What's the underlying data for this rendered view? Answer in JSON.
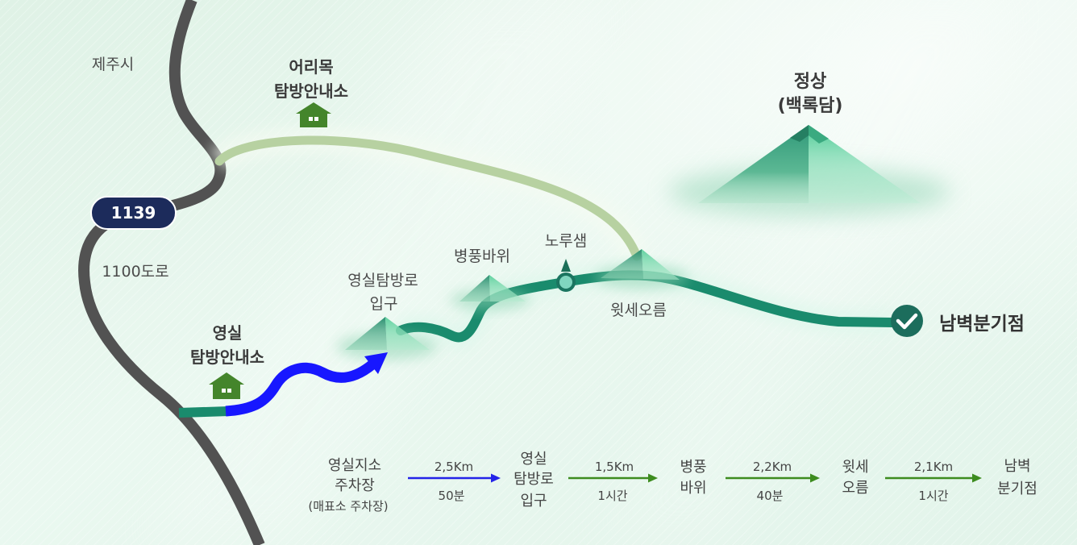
{
  "map": {
    "city_label": "제주시",
    "road_label": "1100도로",
    "road_number": "1139",
    "eorimok_center": {
      "lines": [
        "어리목",
        "탐방안내소"
      ],
      "icon": "house-icon"
    },
    "yeongsil_center": {
      "lines": [
        "영실",
        "탐방안내소"
      ],
      "icon": "house-icon"
    },
    "trail_entrance": {
      "lines": [
        "영실탐방로",
        "입구"
      ]
    },
    "byeongpung_rock": {
      "label": "병풍바위"
    },
    "noru_spring": {
      "label": "노루샘",
      "icon": "pin-icon"
    },
    "witse_oreum": {
      "label": "윗세오름"
    },
    "summit": {
      "lines": [
        "정상",
        "(백록담)"
      ]
    },
    "nambyeok_junction": {
      "label": "남벽분기점",
      "icon": "check-circle-icon"
    }
  },
  "legend": {
    "stops": [
      {
        "lines": [
          "영실지소",
          "주차장",
          "(매표소 주차장)"
        ]
      },
      {
        "lines": [
          "영실",
          "탐방로",
          "입구"
        ]
      },
      {
        "lines": [
          "병풍",
          "바위"
        ]
      },
      {
        "lines": [
          "윗세",
          "오름"
        ]
      },
      {
        "lines": [
          "남벽",
          "분기점"
        ]
      }
    ],
    "segments": [
      {
        "distance": "2,5Km",
        "time": "50분",
        "color": "#2323e8"
      },
      {
        "distance": "1,5Km",
        "time": "1시간",
        "color": "#3d8c1f"
      },
      {
        "distance": "2,2Km",
        "time": "40분",
        "color": "#3d8c1f"
      },
      {
        "distance": "2,1Km",
        "time": "1시간",
        "color": "#3d8c1f"
      }
    ]
  },
  "colors": {
    "road": "#525252",
    "road_badge": "#1c2b5b",
    "eorimok_trail": "#b7d1a1",
    "yeongsil_trail": "#1a8b6d",
    "approach_route": "#1717ff",
    "house": "#44852b",
    "destination_marker": "#1c6d5c"
  }
}
